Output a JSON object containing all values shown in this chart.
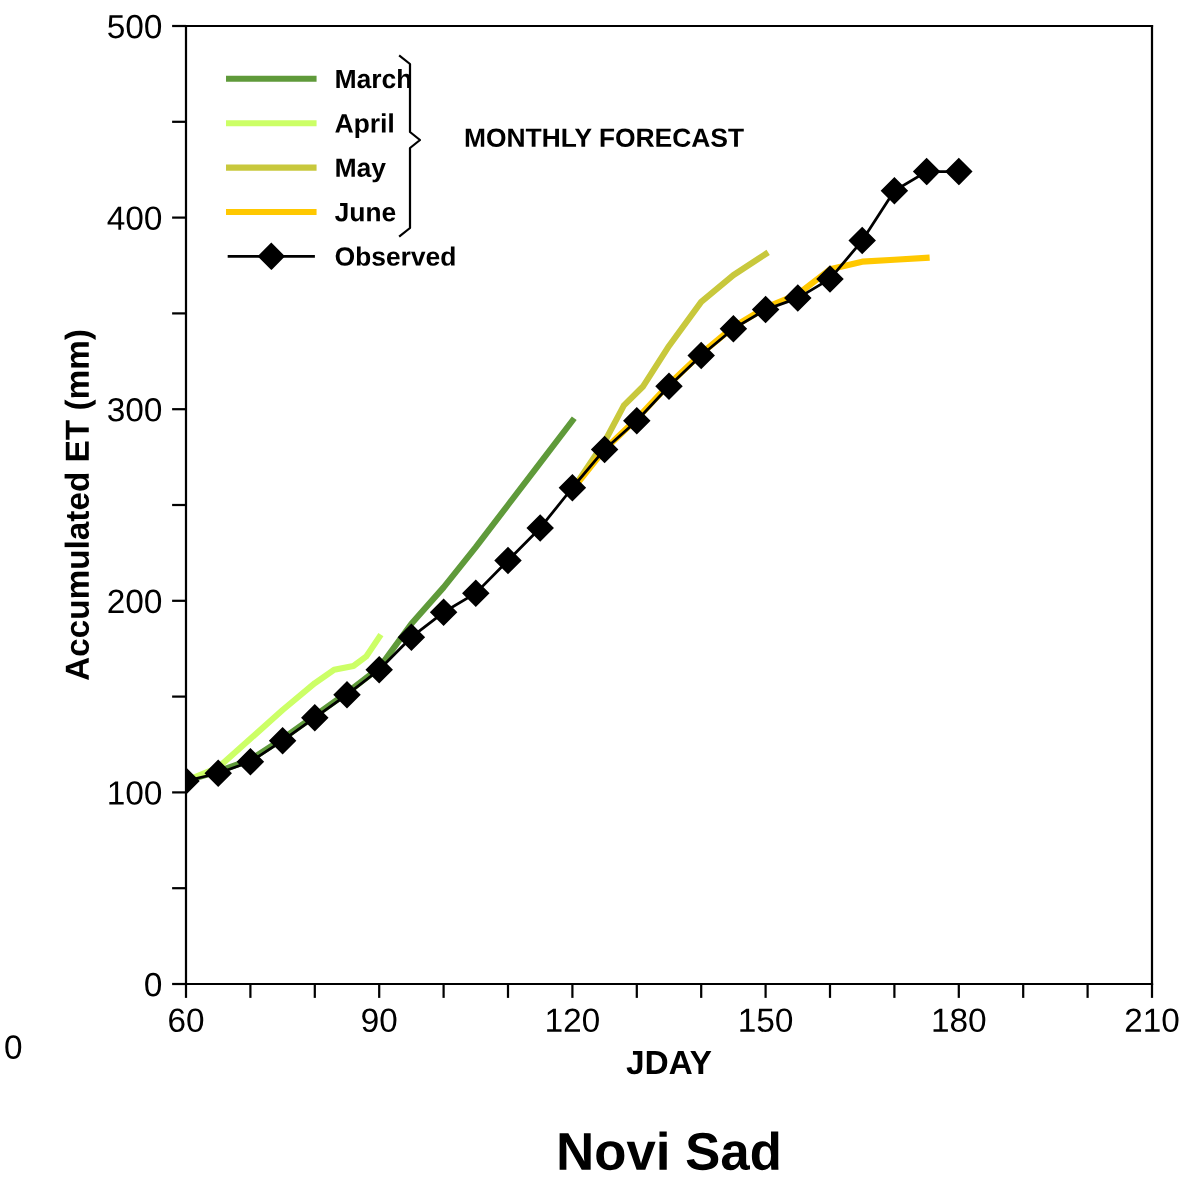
{
  "chart_data": {
    "type": "line",
    "title": "Novi Sad",
    "xlabel": "JDAY",
    "ylabel": "Accumulated ET (mm)",
    "xlim": [
      60,
      210
    ],
    "xticks": [
      60,
      {
        "value": 70,
        "label": null
      },
      {
        "value": 80,
        "label": null
      },
      90,
      {
        "value": 100,
        "label": null
      },
      {
        "value": 110,
        "label": null
      },
      120,
      {
        "value": 130,
        "label": null
      },
      {
        "value": 140,
        "label": null
      },
      150,
      {
        "value": 160,
        "label": null
      },
      {
        "value": 170,
        "label": null
      },
      180,
      {
        "value": 190,
        "label": null
      },
      {
        "value": 200,
        "label": null
      },
      210
    ],
    "ylim": [
      0,
      500
    ],
    "yticks": [
      0,
      {
        "value": 50,
        "label": null
      },
      100,
      {
        "value": 150,
        "label": null
      },
      200,
      {
        "value": 250,
        "label": null
      },
      300,
      {
        "value": 350,
        "label": null
      },
      400,
      {
        "value": 450,
        "label": null
      },
      500
    ],
    "grid": false,
    "legend": "top left",
    "annotations": [
      "MONTHLY FORECAST",
      "0"
    ],
    "series": [
      {
        "name": "March",
        "color": "#5f9a3a",
        "x": [
          60,
          65,
          70,
          75,
          80,
          85,
          90,
          95,
          100,
          105,
          110,
          115,
          120
        ],
        "values": [
          106,
          111,
          117,
          128,
          140,
          152,
          165,
          188,
          207,
          228,
          250,
          272,
          294
        ]
      },
      {
        "name": "April",
        "color": "#ccff66",
        "x": [
          60,
          65,
          70,
          75,
          80,
          83,
          86,
          88,
          90
        ],
        "values": [
          106,
          113,
          128,
          143,
          157,
          164,
          166,
          171,
          181
        ]
      },
      {
        "name": "May",
        "color": "#c8c83c",
        "x": [
          120,
          125,
          128,
          131,
          135,
          140,
          145,
          150
        ],
        "values": [
          258,
          283,
          302,
          312,
          333,
          356,
          370,
          381
        ]
      },
      {
        "name": "June",
        "color": "#ffc800",
        "x": [
          120,
          125,
          130,
          135,
          140,
          145,
          150,
          155,
          160,
          165,
          170,
          175
        ],
        "values": [
          258,
          279,
          295,
          313,
          329,
          343,
          353,
          360,
          373,
          377,
          378,
          379
        ]
      },
      {
        "name": "Observed",
        "color": "#000000",
        "marker": "diamond",
        "x": [
          60,
          65,
          70,
          75,
          80,
          85,
          90,
          95,
          100,
          105,
          110,
          115,
          120,
          125,
          130,
          135,
          140,
          145,
          150,
          155,
          160,
          165,
          170,
          175,
          180
        ],
        "values": [
          106,
          110,
          116,
          127,
          139,
          151,
          164,
          181,
          194,
          204,
          221,
          238,
          259,
          279,
          294,
          312,
          328,
          342,
          352,
          358,
          368,
          388,
          414,
          424,
          424
        ]
      }
    ]
  }
}
